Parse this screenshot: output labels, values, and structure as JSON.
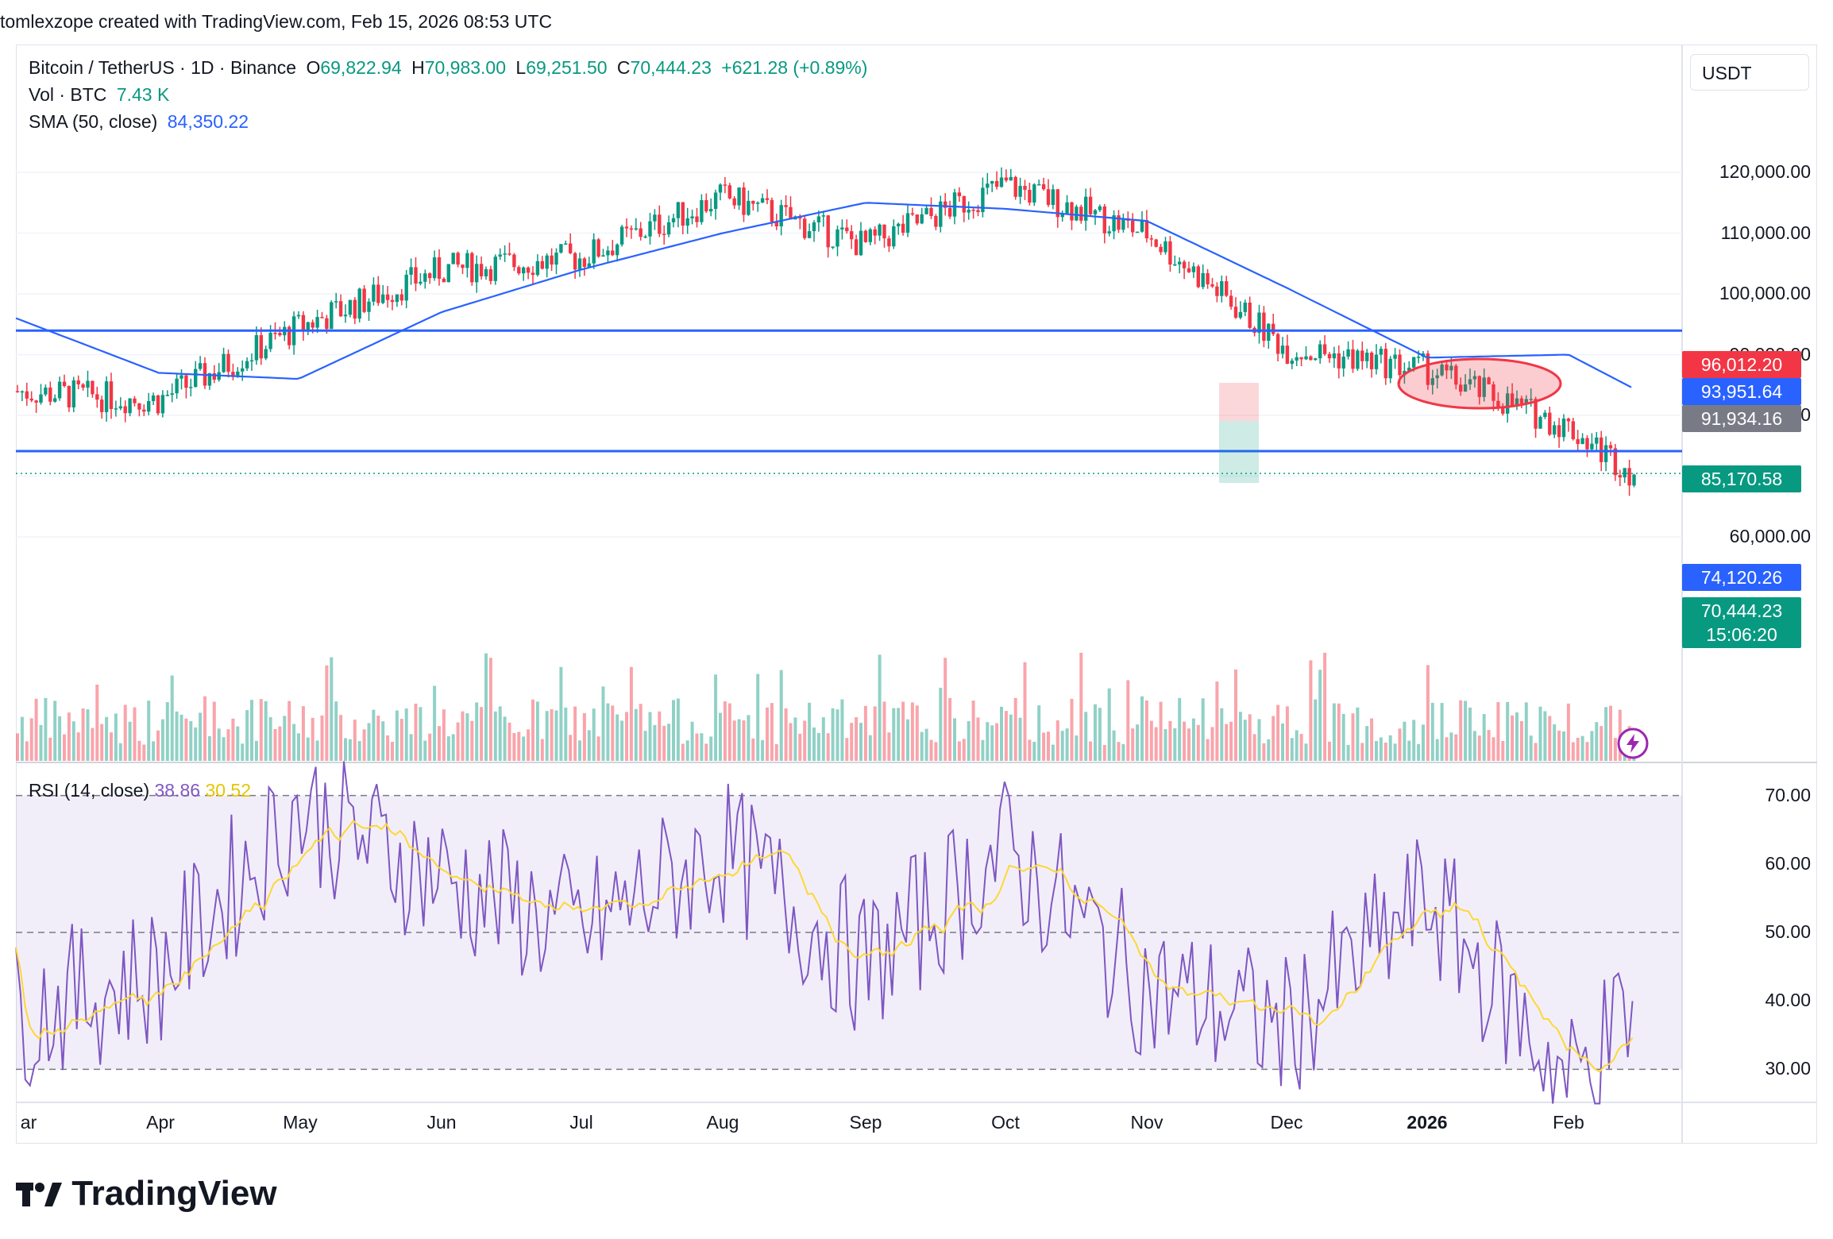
{
  "header": "tomlexzope created with TradingView.com, Feb 15, 2026 08:53 UTC",
  "legend": {
    "symbol": "Bitcoin / TetherUS · 1D · Binance",
    "o_label": "O",
    "o": "69,822.94",
    "h_label": "H",
    "h": "70,983.00",
    "l_label": "L",
    "l": "69,251.50",
    "c_label": "C",
    "c": "70,444.23",
    "change": "+621.28 (+0.89%)",
    "vol_label": "Vol · BTC",
    "vol": "7.43 K",
    "sma_label": "SMA (50, close)",
    "sma": "84,350.22"
  },
  "currency_button": "USDT",
  "price_axis": [
    "120,000.00",
    "110,000.00",
    "100,000.00",
    "90,000.00",
    "80,000.00",
    "60,000.00"
  ],
  "price_tags": [
    {
      "text": "96,012.20",
      "color": "#f23645"
    },
    {
      "text": "93,951.64",
      "color": "#2962ff"
    },
    {
      "text": "91,934.16",
      "color": "#787b86"
    },
    {
      "text": "85,170.58",
      "color": "#089981"
    },
    {
      "text": "74,120.26",
      "color": "#2962ff"
    },
    {
      "text": "70,444.23",
      "color": "#089981"
    },
    {
      "text": "15:06:20",
      "color": "#089981"
    }
  ],
  "rsi": {
    "label": "RSI (14, close)",
    "value": "38.86",
    "ma_value": "30.52",
    "axis": [
      "70.00",
      "60.00",
      "50.00",
      "40.00",
      "30.00"
    ]
  },
  "months": [
    "ar",
    "Apr",
    "May",
    "Jun",
    "Jul",
    "Aug",
    "Sep",
    "Oct",
    "Nov",
    "Dec",
    "2026",
    "Feb"
  ],
  "logo_text": "TradingView",
  "colors": {
    "up": "#089981",
    "down": "#f23645",
    "sma": "#2962ff",
    "rsi": "#7e57c2",
    "rsi_ma": "#fdd835",
    "level": "#2962ff"
  },
  "chart_data": {
    "type": "line",
    "title": "Bitcoin / TetherUS · 1D · Binance",
    "price_close_approx": {
      "x": [
        "Mar",
        "Apr",
        "May",
        "Jun",
        "Jul",
        "Aug",
        "Sep",
        "Oct",
        "Nov",
        "Dec",
        "2026",
        "Feb",
        "Feb 15"
      ],
      "values": [
        84000,
        82500,
        94500,
        104000,
        106000,
        116000,
        108000,
        118000,
        110000,
        91000,
        87500,
        78000,
        70444
      ]
    },
    "sma50_approx": {
      "x": [
        "Mar",
        "Apr",
        "May",
        "Jun",
        "Jul",
        "Aug",
        "Sep",
        "Oct",
        "Nov",
        "Dec",
        "2026",
        "Feb",
        "Feb 15"
      ],
      "values": [
        96000,
        87000,
        86000,
        97000,
        104000,
        110000,
        115000,
        114000,
        112000,
        101000,
        89500,
        90000,
        84350
      ]
    },
    "horizontal_levels": [
      93951.64,
      74120.26
    ],
    "ylim": [
      55000,
      128000
    ],
    "rsi_ylim": [
      25,
      75
    ]
  }
}
